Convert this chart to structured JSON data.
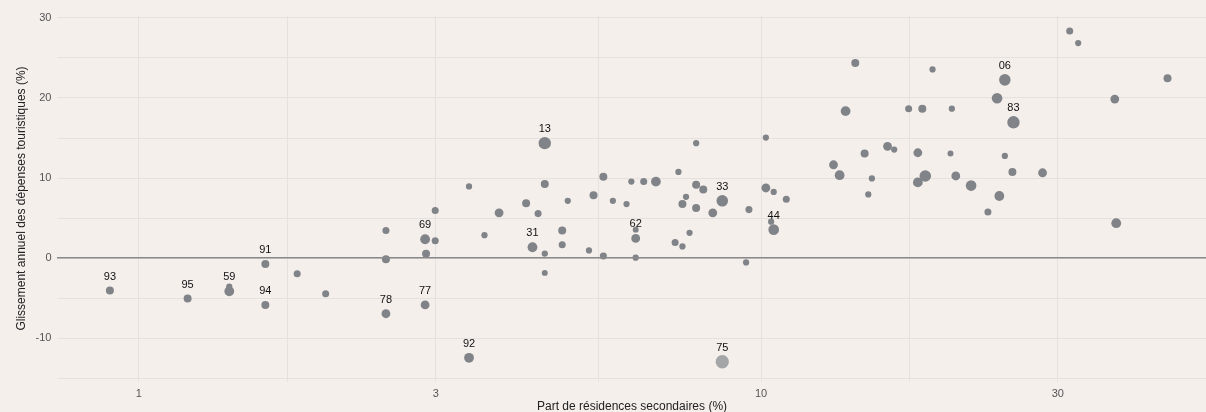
{
  "chart_data": {
    "type": "bubble",
    "xlabel": "Part de résidences secondaires (%)",
    "ylabel": "Glissement annuel des dépenses touristiques (%)",
    "log": "x",
    "grid": true,
    "xlim": [
      0.74,
      52
    ],
    "ylim": [
      -15.4,
      30.3
    ],
    "xticks": [
      {
        "value": 1,
        "label": "1"
      },
      {
        "value": 1.732,
        "label": null
      },
      {
        "value": 3,
        "label": "3"
      },
      {
        "value": 5.477,
        "label": null
      },
      {
        "value": 10,
        "label": "10"
      },
      {
        "value": 17.32,
        "label": null
      },
      {
        "value": 30,
        "label": "30"
      }
    ],
    "yticks": [
      {
        "value": -15,
        "label": null
      },
      -10,
      {
        "value": -5,
        "label": null
      },
      0,
      {
        "value": 5,
        "label": null
      },
      10,
      {
        "value": 15,
        "label": null
      },
      20,
      {
        "value": 25,
        "label": null
      },
      30
    ],
    "ref_lines": [
      {
        "axis": "y",
        "value": 0,
        "color": "#8a8a8a"
      }
    ],
    "x": [
      0.9,
      1.2,
      1.4,
      1.4,
      1.6,
      1.6,
      1.8,
      2.0,
      2.5,
      2.5,
      2.5,
      2.89,
      3.0,
      3.0,
      2.9,
      2.89,
      3.4,
      3.4,
      3.6,
      3.8,
      4.2,
      4.39,
      4.5,
      4.5,
      4.3,
      4.5,
      4.5,
      4.8,
      4.8,
      4.9,
      5.3,
      5.39,
      5.59,
      5.59,
      5.79,
      6.09,
      6.2,
      6.3,
      6.3,
      6.3,
      6.49,
      6.79,
      7.29,
      7.38,
      7.49,
      7.49,
      7.59,
      7.69,
      7.88,
      7.88,
      7.88,
      8.09,
      8.38,
      8.68,
      8.68,
      9.48,
      9.58,
      10.2,
      10.2,
      10.5,
      10.5,
      10.4,
      11.0,
      13.1,
      13.4,
      13.7,
      14.2,
      14.7,
      15.1,
      14.9,
      16.0,
      16.4,
      17.3,
      18.2,
      18.9,
      20.3,
      17.9,
      18.4,
      17.9,
      20.2,
      20.6,
      21.8,
      24.2,
      24.7,
      25.4,
      28.4,
      24.7,
      24.0,
      25.5,
      31.4,
      32.4,
      37.1,
      45.1,
      23.2,
      37.3
    ],
    "values": [
      -4.1,
      -5.1,
      -3.6,
      -4.2,
      -0.8,
      -5.9,
      -2.0,
      -4.5,
      3.4,
      -0.2,
      -7.0,
      2.3,
      2.1,
      5.9,
      0.5,
      -5.9,
      -12.5,
      8.9,
      2.8,
      5.6,
      6.8,
      5.5,
      9.2,
      14.3,
      1.3,
      0.5,
      -1.9,
      3.4,
      1.6,
      7.1,
      0.9,
      7.8,
      10.1,
      0.2,
      7.1,
      6.7,
      9.5,
      3.5,
      2.4,
      0.0,
      9.5,
      9.5,
      1.9,
      10.7,
      1.4,
      6.7,
      7.6,
      3.1,
      14.3,
      9.1,
      6.2,
      8.5,
      5.6,
      7.1,
      -13.0,
      -0.6,
      6.0,
      15.0,
      8.7,
      8.2,
      3.5,
      4.5,
      7.3,
      11.6,
      10.3,
      18.3,
      24.3,
      13.0,
      9.9,
      7.9,
      13.9,
      13.5,
      18.6,
      18.6,
      23.5,
      18.6,
      13.1,
      10.2,
      9.4,
      13.0,
      10.2,
      9.0,
      7.7,
      12.7,
      10.7,
      10.6,
      22.2,
      19.9,
      16.9,
      28.3,
      26.8,
      19.8,
      22.4,
      5.7,
      4.3
    ],
    "sizes": [
      0.36,
      0.36,
      0.22,
      0.54,
      0.36,
      0.36,
      0.28,
      0.28,
      0.28,
      0.36,
      0.44,
      0.54,
      0.28,
      0.28,
      0.36,
      0.44,
      0.54,
      0.22,
      0.22,
      0.44,
      0.36,
      0.28,
      0.36,
      0.87,
      0.54,
      0.22,
      0.2,
      0.36,
      0.28,
      0.22,
      0.22,
      0.36,
      0.36,
      0.28,
      0.22,
      0.22,
      0.22,
      0.2,
      0.44,
      0.22,
      0.28,
      0.54,
      0.28,
      0.22,
      0.22,
      0.36,
      0.22,
      0.22,
      0.22,
      0.36,
      0.36,
      0.36,
      0.44,
      0.75,
      1,
      0.22,
      0.28,
      0.22,
      0.44,
      0.22,
      0.64,
      0.22,
      0.28,
      0.44,
      0.54,
      0.54,
      0.36,
      0.36,
      0.22,
      0.22,
      0.44,
      0.22,
      0.28,
      0.36,
      0.22,
      0.22,
      0.44,
      0.75,
      0.54,
      0.2,
      0.44,
      0.64,
      0.54,
      0.22,
      0.36,
      0.44,
      0.75,
      0.64,
      0.87,
      0.28,
      0.22,
      0.44,
      0.36,
      0.28,
      0.54
    ],
    "colors": [
      "#808387",
      "#808387",
      "#808387",
      "#808387",
      "#808387",
      "#808387",
      "#808387",
      "#808387",
      "#808387",
      "#808387",
      "#808387",
      "#808387",
      "#808387",
      "#808387",
      "#808387",
      "#808387",
      "#808387",
      "#808387",
      "#808387",
      "#808387",
      "#808387",
      "#808387",
      "#808387",
      "#808387",
      "#808387",
      "#808387",
      "#808387",
      "#808387",
      "#808387",
      "#808387",
      "#808387",
      "#808387",
      "#808387",
      "#808387",
      "#808387",
      "#808387",
      "#808387",
      "#808387",
      "#808387",
      "#808387",
      "#808387",
      "#808387",
      "#808387",
      "#808387",
      "#808387",
      "#808387",
      "#808387",
      "#808387",
      "#808387",
      "#808387",
      "#808387",
      "#808387",
      "#808387",
      "#808387",
      "#a3a5a6",
      "#808387",
      "#808387",
      "#808387",
      "#808387",
      "#808387",
      "#808387",
      "#808387",
      "#808387",
      "#808387",
      "#808387",
      "#808387",
      "#808387",
      "#808387",
      "#808387",
      "#808387",
      "#808387",
      "#808387",
      "#808387",
      "#808387",
      "#808387",
      "#808387",
      "#808387",
      "#808387",
      "#808387",
      "#808387",
      "#808387",
      "#808387",
      "#808387",
      "#808387",
      "#808387",
      "#808387",
      "#808387",
      "#808387",
      "#808387",
      "#808387",
      "#808387",
      "#808387",
      "#808387",
      "#808387",
      "#808387"
    ],
    "annotations": [
      {
        "text": "93",
        "x": 0.9,
        "y": -4.1
      },
      {
        "text": "95",
        "x": 1.2,
        "y": -5.1
      },
      {
        "text": "59",
        "x": 1.4,
        "y": -4.2
      },
      {
        "text": "91",
        "x": 1.6,
        "y": -0.8
      },
      {
        "text": "94",
        "x": 1.6,
        "y": -5.9
      },
      {
        "text": "78",
        "x": 2.5,
        "y": -7.0
      },
      {
        "text": "69",
        "x": 2.89,
        "y": 2.3
      },
      {
        "text": "77",
        "x": 2.89,
        "y": -5.9
      },
      {
        "text": "92",
        "x": 3.4,
        "y": -12.5
      },
      {
        "text": "13",
        "x": 4.5,
        "y": 14.3
      },
      {
        "text": "31",
        "x": 4.3,
        "y": 1.3
      },
      {
        "text": "62",
        "x": 6.3,
        "y": 2.4
      },
      {
        "text": "33",
        "x": 8.68,
        "y": 7.1
      },
      {
        "text": "75",
        "x": 8.68,
        "y": -13.0
      },
      {
        "text": "44",
        "x": 10.5,
        "y": 3.5
      },
      {
        "text": "06",
        "x": 24.7,
        "y": 22.2
      },
      {
        "text": "83",
        "x": 25.5,
        "y": 16.9
      }
    ]
  }
}
